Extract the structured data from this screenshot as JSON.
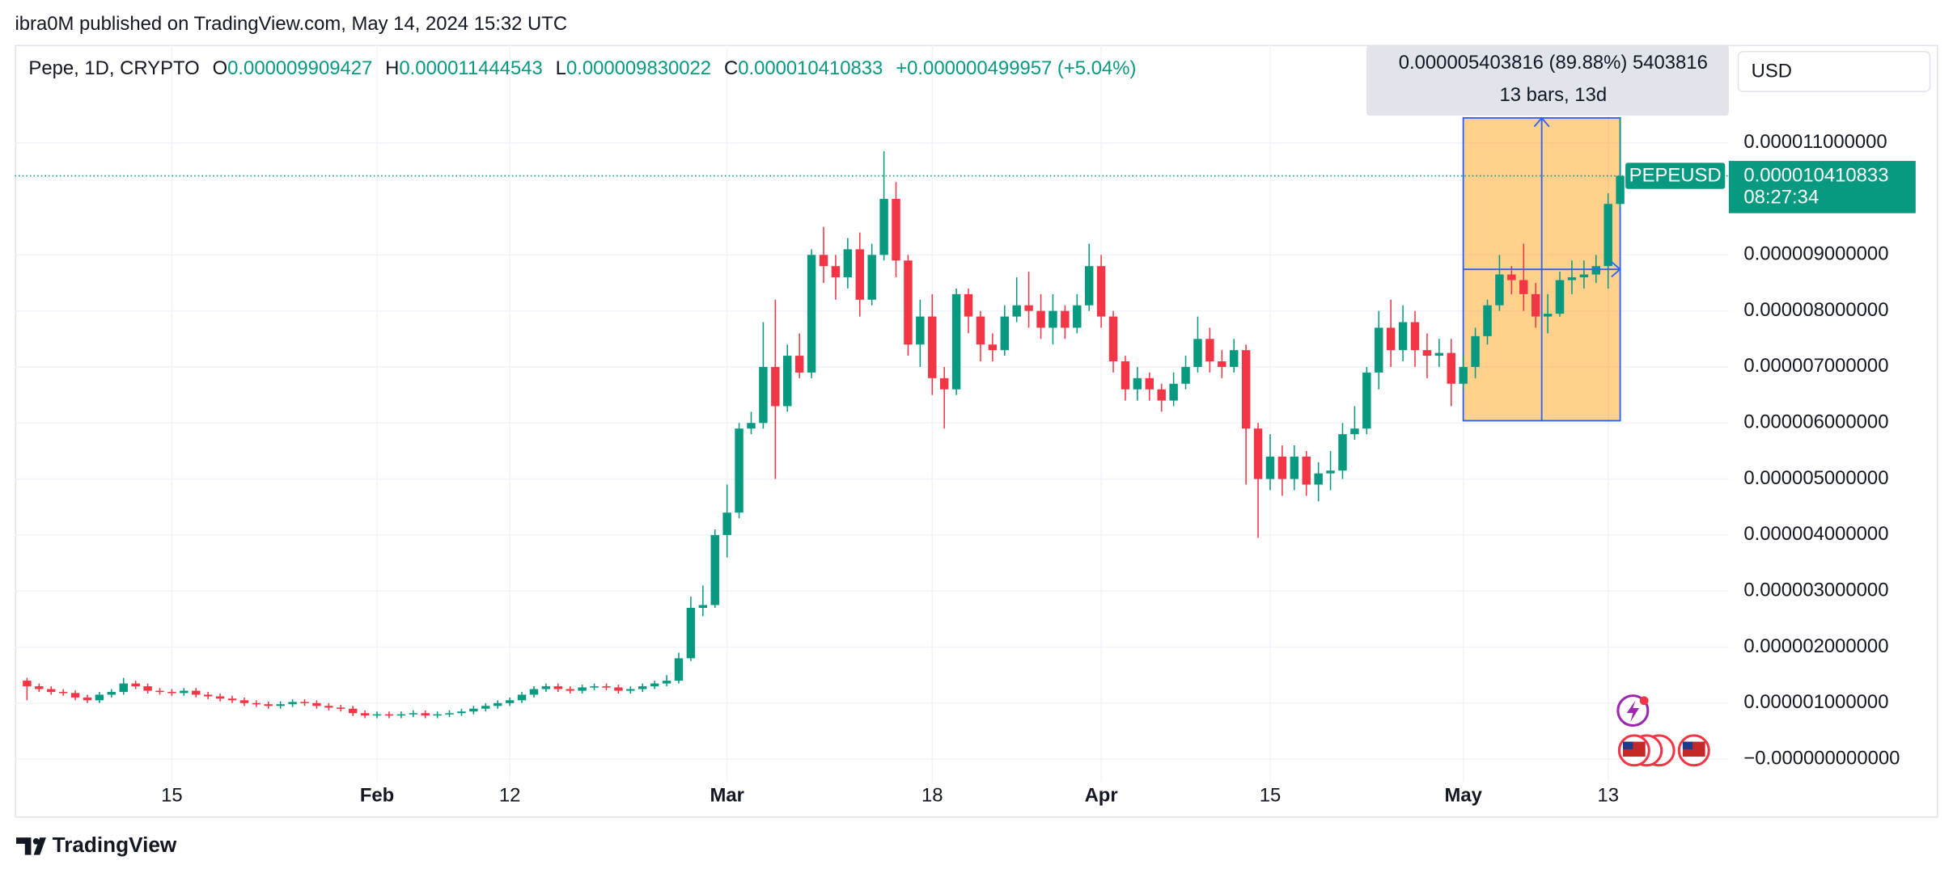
{
  "page": {
    "byline": "ibra0M published on TradingView.com, May 14, 2024 15:32 UTC",
    "brand": "TradingView",
    "currency": "USD"
  },
  "header": {
    "symbol": "Pepe, 1D, CRYPTO",
    "o_label": "O",
    "open": "0.000009909427",
    "h_label": "H",
    "high": "0.000011444543",
    "l_label": "L",
    "low": "0.000009830022",
    "c_label": "C",
    "close": "0.000010410833",
    "change": "+0.000000499957 (+5.04%)"
  },
  "measure": {
    "change": "0.000005403816 (89.88%) 5403816",
    "bars": "13 bars, 13d"
  },
  "price_tag": {
    "symbol": "PEPEUSD",
    "price": "0.000010410833",
    "countdown": "08:27:34"
  },
  "chart_data": {
    "type": "candlestick",
    "up_color": "#089981",
    "down_color": "#f23645",
    "grid": true,
    "xlim": [
      "2024-01-02",
      "2024-05-23"
    ],
    "ylim": [
      -4e-07,
      1.275e-05
    ],
    "yticks": [
      {
        "value": 0,
        "label": "−0.000000000000"
      },
      {
        "value": 1e-06,
        "label": "0.000001000000"
      },
      {
        "value": 2e-06,
        "label": "0.000002000000"
      },
      {
        "value": 3e-06,
        "label": "0.000003000000"
      },
      {
        "value": 4e-06,
        "label": "0.000004000000"
      },
      {
        "value": 5e-06,
        "label": "0.000005000000"
      },
      {
        "value": 6e-06,
        "label": "0.000006000000"
      },
      {
        "value": 7e-06,
        "label": "0.000007000000"
      },
      {
        "value": 8e-06,
        "label": "0.000008000000"
      },
      {
        "value": 9e-06,
        "label": "0.000009000000"
      },
      {
        "value": 1.1e-05,
        "label": "0.000011000000"
      }
    ],
    "xticks": [
      {
        "value": "2024-01-15",
        "label": "15"
      },
      {
        "value": "2024-02-01",
        "label": "Feb"
      },
      {
        "value": "2024-02-12",
        "label": "12"
      },
      {
        "value": "2024-03-01",
        "label": "Mar"
      },
      {
        "value": "2024-03-18",
        "label": "18"
      },
      {
        "value": "2024-04-01",
        "label": "Apr"
      },
      {
        "value": "2024-04-15",
        "label": "15"
      },
      {
        "value": "2024-05-01",
        "label": "May"
      },
      {
        "value": "2024-05-13",
        "label": "13"
      }
    ],
    "x": [
      "2024-01-03",
      "2024-01-04",
      "2024-01-05",
      "2024-01-06",
      "2024-01-07",
      "2024-01-08",
      "2024-01-09",
      "2024-01-10",
      "2024-01-11",
      "2024-01-12",
      "2024-01-13",
      "2024-01-14",
      "2024-01-15",
      "2024-01-16",
      "2024-01-17",
      "2024-01-18",
      "2024-01-19",
      "2024-01-20",
      "2024-01-21",
      "2024-01-22",
      "2024-01-23",
      "2024-01-24",
      "2024-01-25",
      "2024-01-26",
      "2024-01-27",
      "2024-01-28",
      "2024-01-29",
      "2024-01-30",
      "2024-01-31",
      "2024-02-01",
      "2024-02-02",
      "2024-02-03",
      "2024-02-04",
      "2024-02-05",
      "2024-02-06",
      "2024-02-07",
      "2024-02-08",
      "2024-02-09",
      "2024-02-10",
      "2024-02-11",
      "2024-02-12",
      "2024-02-13",
      "2024-02-14",
      "2024-02-15",
      "2024-02-16",
      "2024-02-17",
      "2024-02-18",
      "2024-02-19",
      "2024-02-20",
      "2024-02-21",
      "2024-02-22",
      "2024-02-23",
      "2024-02-24",
      "2024-02-25",
      "2024-02-26",
      "2024-02-27",
      "2024-02-28",
      "2024-02-29",
      "2024-03-01",
      "2024-03-02",
      "2024-03-03",
      "2024-03-04",
      "2024-03-05",
      "2024-03-06",
      "2024-03-07",
      "2024-03-08",
      "2024-03-09",
      "2024-03-10",
      "2024-03-11",
      "2024-03-12",
      "2024-03-13",
      "2024-03-14",
      "2024-03-15",
      "2024-03-16",
      "2024-03-17",
      "2024-03-18",
      "2024-03-19",
      "2024-03-20",
      "2024-03-21",
      "2024-03-22",
      "2024-03-23",
      "2024-03-24",
      "2024-03-25",
      "2024-03-26",
      "2024-03-27",
      "2024-03-28",
      "2024-03-29",
      "2024-03-30",
      "2024-03-31",
      "2024-04-01",
      "2024-04-02",
      "2024-04-03",
      "2024-04-04",
      "2024-04-05",
      "2024-04-06",
      "2024-04-07",
      "2024-04-08",
      "2024-04-09",
      "2024-04-10",
      "2024-04-11",
      "2024-04-12",
      "2024-04-13",
      "2024-04-14",
      "2024-04-15",
      "2024-04-16",
      "2024-04-17",
      "2024-04-18",
      "2024-04-19",
      "2024-04-20",
      "2024-04-21",
      "2024-04-22",
      "2024-04-23",
      "2024-04-24",
      "2024-04-25",
      "2024-04-26",
      "2024-04-27",
      "2024-04-28",
      "2024-04-29",
      "2024-04-30",
      "2024-05-01",
      "2024-05-02",
      "2024-05-03",
      "2024-05-04",
      "2024-05-05",
      "2024-05-06",
      "2024-05-07",
      "2024-05-08",
      "2024-05-09",
      "2024-05-10",
      "2024-05-11",
      "2024-05-12",
      "2024-05-13",
      "2024-05-14"
    ],
    "open": [
      1.4e-06,
      1.3e-06,
      1.25e-06,
      1.2e-06,
      1.18e-06,
      1.1e-06,
      1.05e-06,
      1.15e-06,
      1.2e-06,
      1.35e-06,
      1.3e-06,
      1.22e-06,
      1.2e-06,
      1.18e-06,
      1.22e-06,
      1.15e-06,
      1.12e-06,
      1.08e-06,
      1.05e-06,
      1e-06,
      9.8e-07,
      9.5e-07,
      9.8e-07,
      1.02e-06,
      1e-06,
      9.5e-07,
      9.2e-07,
      9e-07,
      8.2e-07,
      7.8e-07,
      8e-07,
      7.8e-07,
      8e-07,
      8.2e-07,
      7.8e-07,
      8e-07,
      8.2e-07,
      8.5e-07,
      9e-07,
      9.5e-07,
      1e-06,
      1.05e-06,
      1.15e-06,
      1.25e-06,
      1.3e-06,
      1.25e-06,
      1.22e-06,
      1.28e-06,
      1.3e-06,
      1.28e-06,
      1.22e-06,
      1.25e-06,
      1.3e-06,
      1.35e-06,
      1.4e-06,
      1.8e-06,
      2.7e-06,
      2.75e-06,
      4e-06,
      4.4e-06,
      5.9e-06,
      6e-06,
      7e-06,
      6.3e-06,
      7.2e-06,
      6.9e-06,
      9e-06,
      8.8e-06,
      8.6e-06,
      9.1e-06,
      8.2e-06,
      9e-06,
      1e-05,
      8.9e-06,
      7.4e-06,
      7.9e-06,
      6.8e-06,
      6.6e-06,
      8.3e-06,
      7.9e-06,
      7.4e-06,
      7.3e-06,
      7.9e-06,
      8.1e-06,
      8e-06,
      7.7e-06,
      8e-06,
      7.7e-06,
      8.1e-06,
      8.8e-06,
      7.9e-06,
      7.1e-06,
      6.6e-06,
      6.8e-06,
      6.6e-06,
      6.4e-06,
      6.7e-06,
      7e-06,
      7.5e-06,
      7.1e-06,
      7e-06,
      7.3e-06,
      5.9e-06,
      5e-06,
      5.4e-06,
      5e-06,
      5.4e-06,
      4.9e-06,
      5.1e-06,
      5.15e-06,
      5.8e-06,
      5.9e-06,
      6.9e-06,
      7.7e-06,
      7.3e-06,
      7.8e-06,
      7.3e-06,
      7.2e-06,
      7.25e-06,
      6.7e-06,
      7e-06,
      7.55e-06,
      8.1e-06,
      8.65e-06,
      8.55e-06,
      8.3e-06,
      7.9e-06,
      7.95e-06,
      8.55e-06,
      8.6e-06,
      8.65e-06,
      8.8e-06,
      9.909427e-06
    ],
    "high": [
      1.45e-06,
      1.35e-06,
      1.3e-06,
      1.25e-06,
      1.23e-06,
      1.15e-06,
      1.2e-06,
      1.25e-06,
      1.45e-06,
      1.4e-06,
      1.35e-06,
      1.27e-06,
      1.25e-06,
      1.27e-06,
      1.27e-06,
      1.2e-06,
      1.17e-06,
      1.13e-06,
      1.1e-06,
      1.05e-06,
      1.03e-06,
      1.03e-06,
      1.07e-06,
      1.07e-06,
      1.05e-06,
      1e-06,
      9.7e-07,
      9.5e-07,
      8.7e-07,
      8.5e-07,
      8.5e-07,
      8.5e-07,
      8.7e-07,
      8.7e-07,
      8.5e-07,
      8.7e-07,
      9e-07,
      9.5e-07,
      1e-06,
      1.05e-06,
      1.1e-06,
      1.2e-06,
      1.3e-06,
      1.35e-06,
      1.35e-06,
      1.3e-06,
      1.33e-06,
      1.35e-06,
      1.35e-06,
      1.33e-06,
      1.3e-06,
      1.35e-06,
      1.4e-06,
      1.5e-06,
      1.9e-06,
      2.9e-06,
      3.1e-06,
      4.1e-06,
      4.9e-06,
      6e-06,
      6.2e-06,
      7.8e-06,
      8.2e-06,
      7.4e-06,
      7.6e-06,
      9.1e-06,
      9.5e-06,
      9e-06,
      9.3e-06,
      9.4e-06,
      9.2e-06,
      1.085e-05,
      1.03e-05,
      9e-06,
      8.2e-06,
      8.3e-06,
      7e-06,
      8.4e-06,
      8.4e-06,
      8e-06,
      7.6e-06,
      8.1e-06,
      8.6e-06,
      8.7e-06,
      8.3e-06,
      8.3e-06,
      8.1e-06,
      8.3e-06,
      9.2e-06,
      9e-06,
      8e-06,
      7.2e-06,
      7e-06,
      6.9e-06,
      6.7e-06,
      6.9e-06,
      7.2e-06,
      7.9e-06,
      7.7e-06,
      7.3e-06,
      7.5e-06,
      7.4e-06,
      6e-06,
      5.8e-06,
      5.6e-06,
      5.6e-06,
      5.5e-06,
      5.3e-06,
      5.5e-06,
      6e-06,
      6.3e-06,
      7e-06,
      8e-06,
      8.2e-06,
      8.1e-06,
      8e-06,
      7.6e-06,
      7.5e-06,
      7.5e-06,
      7.2e-06,
      7.7e-06,
      8.2e-06,
      9e-06,
      8.8e-06,
      9.2e-06,
      8.5e-06,
      8.3e-06,
      8.7e-06,
      8.9e-06,
      8.9e-06,
      9e-06,
      1.01e-05,
      1.1444543e-05
    ],
    "low": [
      1.05e-06,
      1.2e-06,
      1.15e-06,
      1.13e-06,
      1.05e-06,
      1e-06,
      1e-06,
      1.1e-06,
      1.15e-06,
      1.25e-06,
      1.17e-06,
      1.15e-06,
      1.13e-06,
      1.13e-06,
      1.1e-06,
      1.07e-06,
      1.03e-06,
      1e-06,
      9.5e-07,
      9.3e-07,
      9e-07,
      9e-07,
      9.3e-07,
      9.5e-07,
      9e-07,
      8.7e-07,
      8.5e-07,
      7.7e-07,
      7.3e-07,
      7.3e-07,
      7.3e-07,
      7.3e-07,
      7.5e-07,
      7.3e-07,
      7.3e-07,
      7.5e-07,
      7.7e-07,
      8e-07,
      8.5e-07,
      9e-07,
      9.5e-07,
      1e-06,
      1.1e-06,
      1.2e-06,
      1.2e-06,
      1.17e-06,
      1.17e-06,
      1.23e-06,
      1.23e-06,
      1.17e-06,
      1.17e-06,
      1.2e-06,
      1.25e-06,
      1.3e-06,
      1.35e-06,
      1.75e-06,
      2.55e-06,
      2.7e-06,
      3.6e-06,
      4.3e-06,
      5.8e-06,
      5.9e-06,
      5e-06,
      6.2e-06,
      6.8e-06,
      6.8e-06,
      8.5e-06,
      8.2e-06,
      8.4e-06,
      7.9e-06,
      8.1e-06,
      8.9e-06,
      8.6e-06,
      7.2e-06,
      7e-06,
      6.5e-06,
      5.9e-06,
      6.5e-06,
      7.6e-06,
      7.1e-06,
      7.1e-06,
      7.2e-06,
      7.8e-06,
      7.7e-06,
      7.5e-06,
      7.4e-06,
      7.5e-06,
      7.6e-06,
      8e-06,
      7.7e-06,
      6.9e-06,
      6.4e-06,
      6.4e-06,
      6.4e-06,
      6.2e-06,
      6.3e-06,
      6.6e-06,
      6.9e-06,
      6.9e-06,
      6.8e-06,
      6.9e-06,
      4.9e-06,
      3.95e-06,
      4.8e-06,
      4.7e-06,
      4.8e-06,
      4.7e-06,
      4.6e-06,
      4.8e-06,
      5e-06,
      5.7e-06,
      5.8e-06,
      6.6e-06,
      7e-06,
      7.1e-06,
      7e-06,
      6.8e-06,
      7e-06,
      6.3e-06,
      6.6e-06,
      6.8e-06,
      7.4e-06,
      8e-06,
      8.3e-06,
      8e-06,
      7.7e-06,
      7.6e-06,
      7.9e-06,
      8.3e-06,
      8.4e-06,
      8.5e-06,
      8.4e-06,
      9.830022e-06
    ],
    "close": [
      1.3e-06,
      1.25e-06,
      1.2e-06,
      1.18e-06,
      1.1e-06,
      1.05e-06,
      1.15e-06,
      1.2e-06,
      1.35e-06,
      1.3e-06,
      1.22e-06,
      1.2e-06,
      1.18e-06,
      1.22e-06,
      1.15e-06,
      1.12e-06,
      1.08e-06,
      1.05e-06,
      1e-06,
      9.8e-07,
      9.5e-07,
      9.8e-07,
      1.02e-06,
      1e-06,
      9.5e-07,
      9.2e-07,
      9e-07,
      8.2e-07,
      7.8e-07,
      8e-07,
      7.8e-07,
      8e-07,
      8.2e-07,
      7.8e-07,
      8e-07,
      8.2e-07,
      8.5e-07,
      9e-07,
      9.5e-07,
      1e-06,
      1.05e-06,
      1.15e-06,
      1.25e-06,
      1.3e-06,
      1.25e-06,
      1.22e-06,
      1.28e-06,
      1.3e-06,
      1.28e-06,
      1.22e-06,
      1.25e-06,
      1.3e-06,
      1.35e-06,
      1.4e-06,
      1.8e-06,
      2.7e-06,
      2.75e-06,
      4e-06,
      4.4e-06,
      5.9e-06,
      6e-06,
      7e-06,
      6.3e-06,
      7.2e-06,
      6.9e-06,
      9e-06,
      8.8e-06,
      8.6e-06,
      9.1e-06,
      8.2e-06,
      9e-06,
      1e-05,
      8.9e-06,
      7.4e-06,
      7.9e-06,
      6.8e-06,
      6.6e-06,
      8.3e-06,
      7.9e-06,
      7.4e-06,
      7.3e-06,
      7.9e-06,
      8.1e-06,
      8e-06,
      7.7e-06,
      8e-06,
      7.7e-06,
      8.1e-06,
      8.8e-06,
      7.9e-06,
      7.1e-06,
      6.6e-06,
      6.8e-06,
      6.6e-06,
      6.4e-06,
      6.7e-06,
      7e-06,
      7.5e-06,
      7.1e-06,
      7e-06,
      7.3e-06,
      5.9e-06,
      5e-06,
      5.4e-06,
      5e-06,
      5.4e-06,
      4.9e-06,
      5.1e-06,
      5.15e-06,
      5.8e-06,
      5.9e-06,
      6.9e-06,
      7.7e-06,
      7.3e-06,
      7.8e-06,
      7.3e-06,
      7.2e-06,
      7.25e-06,
      6.7e-06,
      7e-06,
      7.55e-06,
      8.1e-06,
      8.65e-06,
      8.55e-06,
      8.3e-06,
      7.9e-06,
      7.95e-06,
      8.55e-06,
      8.6e-06,
      8.65e-06,
      8.8e-06,
      9.91e-06,
      1.0410833e-05
    ]
  }
}
